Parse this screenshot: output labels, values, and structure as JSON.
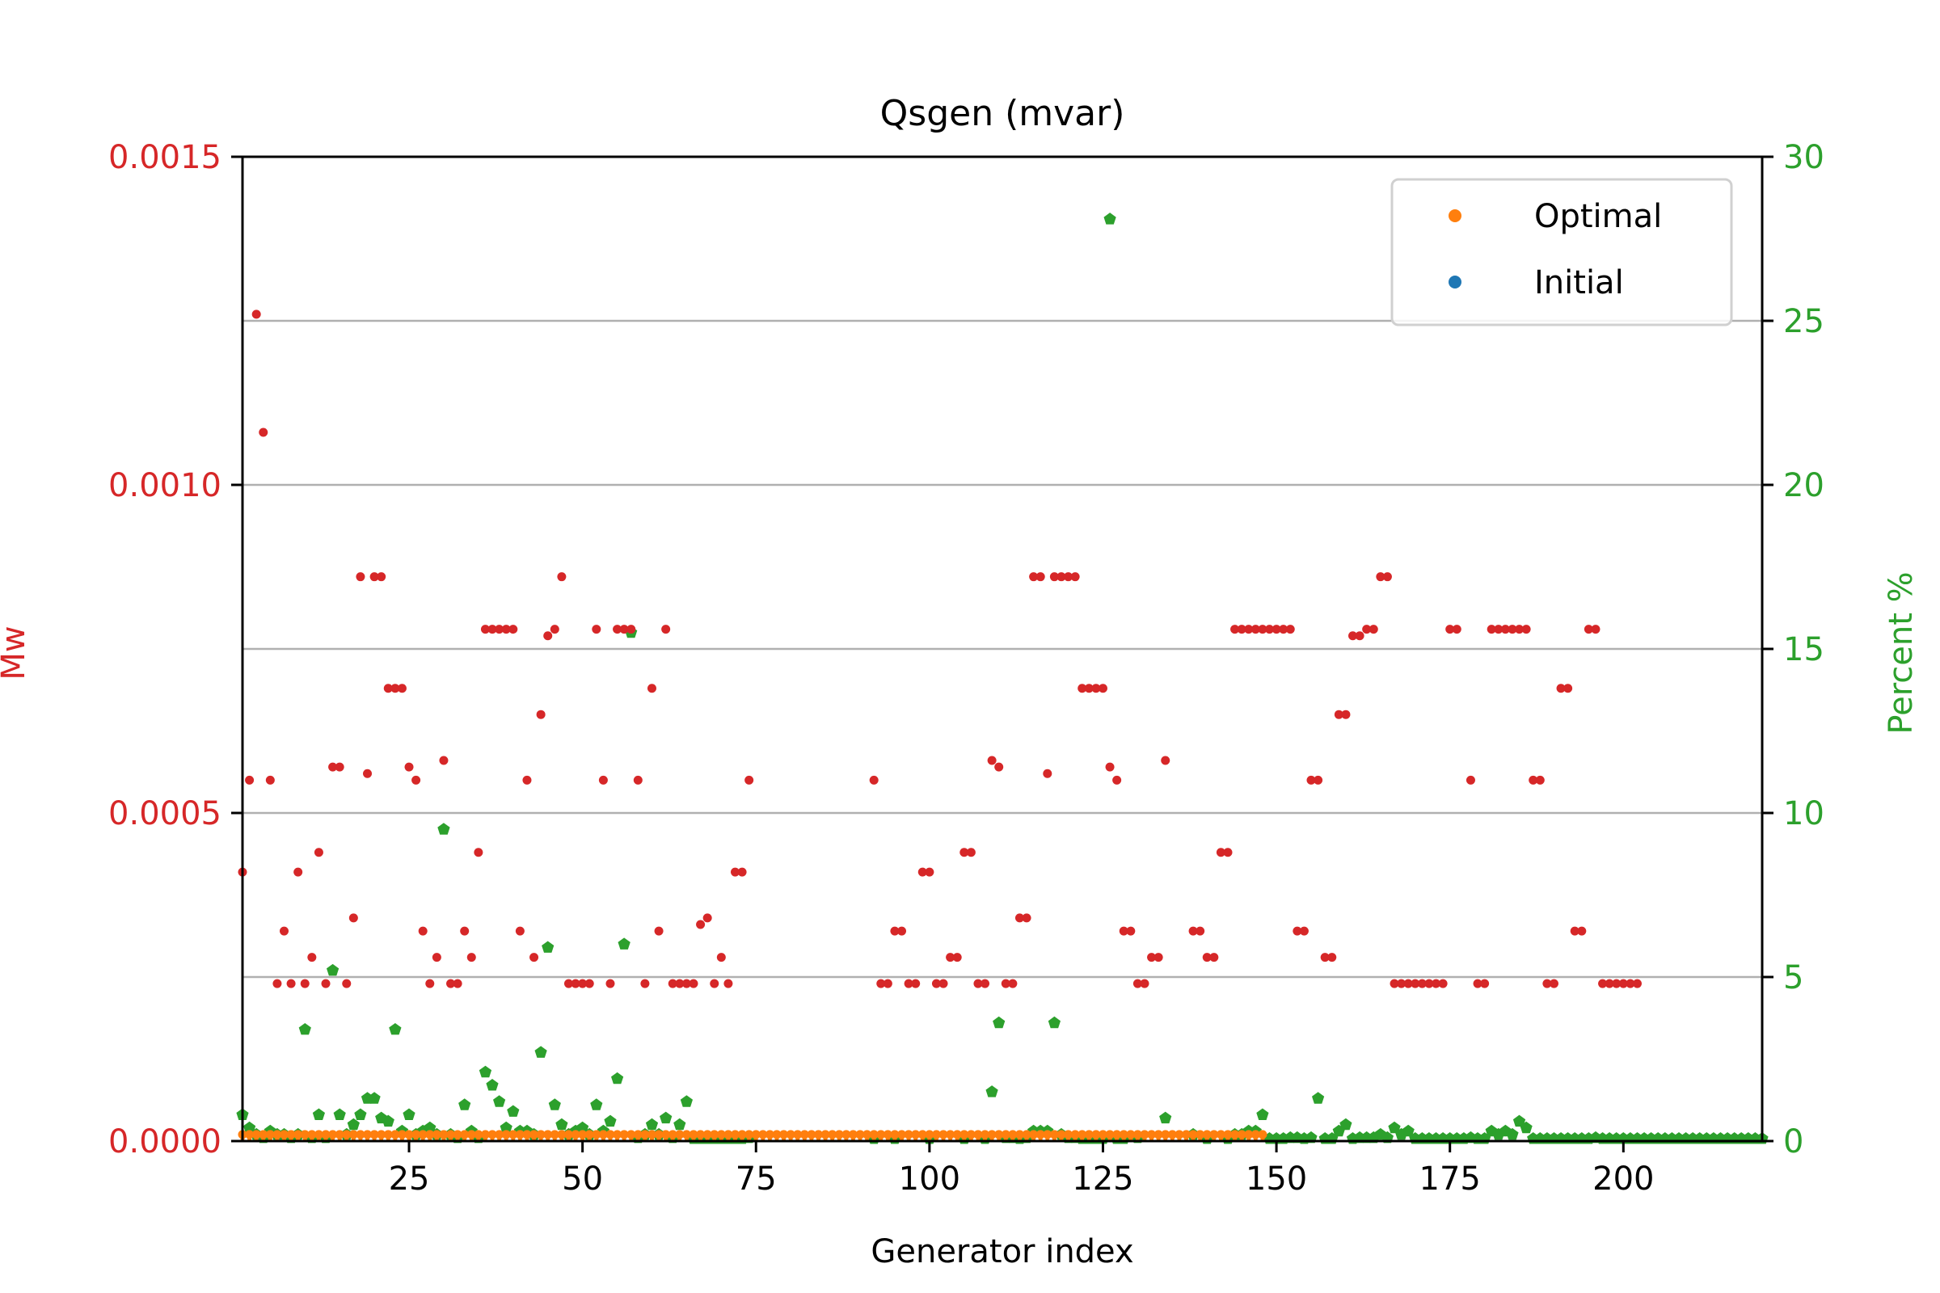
{
  "chart_data": {
    "type": "scatter",
    "title": "Qsgen (mvar)",
    "xlabel": "Generator index",
    "ylabel_left": "Mw",
    "ylabel_right": "Percent %",
    "xlim": [
      1,
      220
    ],
    "ylim_left": [
      0,
      0.0015
    ],
    "ylim_right": [
      0,
      30
    ],
    "x_ticks": [
      25,
      50,
      75,
      100,
      125,
      150,
      175,
      200
    ],
    "y_left_ticks": [
      "0.0000",
      "0.0005",
      "0.0010",
      "0.0015"
    ],
    "y_right_ticks": [
      "0",
      "5",
      "10",
      "15",
      "20",
      "25",
      "30"
    ],
    "y_right_tick_values": [
      0,
      5,
      10,
      15,
      20,
      25,
      30
    ],
    "y_left_tick_values": [
      0,
      0.0005,
      0.001,
      0.0015
    ],
    "grid": "horizontal",
    "legend_placement": "top-right",
    "colors": {
      "optimal": "#ff7f0e",
      "initial": "#1f77b4",
      "diff": "#d62728",
      "percent": "#2ca02c",
      "left_axis": "#d62728",
      "right_axis": "#2ca02c",
      "grid": "#b0b0b0"
    },
    "legend": [
      {
        "label": "Optimal",
        "color": "#ff7f0e"
      },
      {
        "label": "Initial",
        "color": "#1f77b4"
      }
    ],
    "optimal": {
      "x_start": 1,
      "x_end": 148,
      "value": 1e-05
    },
    "initial": {
      "x_start": 1,
      "x_end": 148,
      "value": 3e-06
    },
    "diff_series": [
      [
        1,
        0.00041
      ],
      [
        2,
        0.00055
      ],
      [
        3,
        0.00126
      ],
      [
        4,
        0.00108
      ],
      [
        5,
        0.00055
      ],
      [
        6,
        0.00024
      ],
      [
        7,
        0.00032
      ],
      [
        8,
        0.00024
      ],
      [
        9,
        0.00041
      ],
      [
        10,
        0.00024
      ],
      [
        11,
        0.00028
      ],
      [
        12,
        0.00044
      ],
      [
        13,
        0.00024
      ],
      [
        14,
        0.00057
      ],
      [
        15,
        0.00057
      ],
      [
        16,
        0.00024
      ],
      [
        17,
        0.00034
      ],
      [
        18,
        0.00086
      ],
      [
        19,
        0.00056
      ],
      [
        20,
        0.00086
      ],
      [
        21,
        0.00086
      ],
      [
        22,
        0.00069
      ],
      [
        23,
        0.00069
      ],
      [
        24,
        0.00069
      ],
      [
        25,
        0.00057
      ],
      [
        26,
        0.00055
      ],
      [
        27,
        0.00032
      ],
      [
        28,
        0.00024
      ],
      [
        29,
        0.00028
      ],
      [
        30,
        0.00058
      ],
      [
        31,
        0.00024
      ],
      [
        32,
        0.00024
      ],
      [
        33,
        0.00032
      ],
      [
        34,
        0.00028
      ],
      [
        35,
        0.00044
      ],
      [
        36,
        0.00078
      ],
      [
        37,
        0.00078
      ],
      [
        38,
        0.00078
      ],
      [
        39,
        0.00078
      ],
      [
        40,
        0.00078
      ],
      [
        41,
        0.00032
      ],
      [
        42,
        0.00055
      ],
      [
        43,
        0.00028
      ],
      [
        44,
        0.00065
      ],
      [
        45,
        0.00077
      ],
      [
        46,
        0.00078
      ],
      [
        47,
        0.00086
      ],
      [
        48,
        0.00024
      ],
      [
        49,
        0.00024
      ],
      [
        50,
        0.00024
      ],
      [
        51,
        0.00024
      ],
      [
        52,
        0.00078
      ],
      [
        53,
        0.00055
      ],
      [
        54,
        0.00024
      ],
      [
        55,
        0.00078
      ],
      [
        56,
        0.00078
      ],
      [
        57,
        0.00078
      ],
      [
        58,
        0.00055
      ],
      [
        59,
        0.00024
      ],
      [
        60,
        0.00069
      ],
      [
        61,
        0.00032
      ],
      [
        62,
        0.00078
      ],
      [
        63,
        0.00024
      ],
      [
        64,
        0.00024
      ],
      [
        65,
        0.00024
      ],
      [
        66,
        0.00024
      ],
      [
        67,
        0.00033
      ],
      [
        68,
        0.00034
      ],
      [
        69,
        0.00024
      ],
      [
        70,
        0.00028
      ],
      [
        71,
        0.00024
      ],
      [
        72,
        0.00041
      ],
      [
        73,
        0.00041
      ],
      [
        74,
        0.00055
      ],
      [
        92,
        0.00055
      ],
      [
        93,
        0.00024
      ],
      [
        94,
        0.00024
      ],
      [
        95,
        0.00032
      ],
      [
        96,
        0.00032
      ],
      [
        97,
        0.00024
      ],
      [
        98,
        0.00024
      ],
      [
        99,
        0.00041
      ],
      [
        100,
        0.00041
      ],
      [
        101,
        0.00024
      ],
      [
        102,
        0.00024
      ],
      [
        103,
        0.00028
      ],
      [
        104,
        0.00028
      ],
      [
        105,
        0.00044
      ],
      [
        106,
        0.00044
      ],
      [
        107,
        0.00024
      ],
      [
        108,
        0.00024
      ],
      [
        109,
        0.00058
      ],
      [
        110,
        0.00057
      ],
      [
        111,
        0.00024
      ],
      [
        112,
        0.00024
      ],
      [
        113,
        0.00034
      ],
      [
        114,
        0.00034
      ],
      [
        115,
        0.00086
      ],
      [
        116,
        0.00086
      ],
      [
        117,
        0.00056
      ],
      [
        118,
        0.00086
      ],
      [
        119,
        0.00086
      ],
      [
        120,
        0.00086
      ],
      [
        121,
        0.00086
      ],
      [
        122,
        0.00069
      ],
      [
        123,
        0.00069
      ],
      [
        124,
        0.00069
      ],
      [
        125,
        0.00069
      ],
      [
        126,
        0.00057
      ],
      [
        127,
        0.00055
      ],
      [
        128,
        0.00032
      ],
      [
        129,
        0.00032
      ],
      [
        130,
        0.00024
      ],
      [
        131,
        0.00024
      ],
      [
        132,
        0.00028
      ],
      [
        133,
        0.00028
      ],
      [
        134,
        0.00058
      ],
      [
        138,
        0.00032
      ],
      [
        139,
        0.00032
      ],
      [
        140,
        0.00028
      ],
      [
        141,
        0.00028
      ],
      [
        142,
        0.00044
      ],
      [
        143,
        0.00044
      ],
      [
        144,
        0.00078
      ],
      [
        145,
        0.00078
      ],
      [
        146,
        0.00078
      ],
      [
        147,
        0.00078
      ],
      [
        148,
        0.00078
      ],
      [
        149,
        0.00078
      ],
      [
        150,
        0.00078
      ],
      [
        151,
        0.00078
      ],
      [
        152,
        0.00078
      ],
      [
        153,
        0.00032
      ],
      [
        154,
        0.00032
      ],
      [
        155,
        0.00055
      ],
      [
        156,
        0.00055
      ],
      [
        157,
        0.00028
      ],
      [
        158,
        0.00028
      ],
      [
        159,
        0.00065
      ],
      [
        160,
        0.00065
      ],
      [
        161,
        0.00077
      ],
      [
        162,
        0.00077
      ],
      [
        163,
        0.00078
      ],
      [
        164,
        0.00078
      ],
      [
        165,
        0.00086
      ],
      [
        166,
        0.00086
      ],
      [
        167,
        0.00024
      ],
      [
        168,
        0.00024
      ],
      [
        169,
        0.00024
      ],
      [
        170,
        0.00024
      ],
      [
        171,
        0.00024
      ],
      [
        172,
        0.00024
      ],
      [
        173,
        0.00024
      ],
      [
        174,
        0.00024
      ],
      [
        175,
        0.00078
      ],
      [
        176,
        0.00078
      ],
      [
        178,
        0.00055
      ],
      [
        179,
        0.00024
      ],
      [
        180,
        0.00024
      ],
      [
        181,
        0.00078
      ],
      [
        182,
        0.00078
      ],
      [
        183,
        0.00078
      ],
      [
        184,
        0.00078
      ],
      [
        185,
        0.00078
      ],
      [
        186,
        0.00078
      ],
      [
        187,
        0.00055
      ],
      [
        188,
        0.00055
      ],
      [
        189,
        0.00024
      ],
      [
        190,
        0.00024
      ],
      [
        191,
        0.00069
      ],
      [
        192,
        0.00069
      ],
      [
        193,
        0.00032
      ],
      [
        194,
        0.00032
      ],
      [
        195,
        0.00078
      ],
      [
        196,
        0.00078
      ],
      [
        197,
        0.00024
      ],
      [
        198,
        0.00024
      ],
      [
        199,
        0.00024
      ],
      [
        200,
        0.00024
      ],
      [
        201,
        0.00024
      ],
      [
        202,
        0.00024
      ]
    ],
    "percent_series": [
      [
        1,
        0.8
      ],
      [
        2,
        0.4
      ],
      [
        3,
        0.2
      ],
      [
        4,
        0.1
      ],
      [
        5,
        0.3
      ],
      [
        6,
        0.2
      ],
      [
        7,
        0.2
      ],
      [
        8,
        0.1
      ],
      [
        9,
        0.2
      ],
      [
        10,
        3.4
      ],
      [
        11,
        0.1
      ],
      [
        12,
        0.8
      ],
      [
        13,
        0.1
      ],
      [
        14,
        5.2
      ],
      [
        15,
        0.8
      ],
      [
        16,
        0.2
      ],
      [
        17,
        0.5
      ],
      [
        18,
        0.8
      ],
      [
        19,
        1.3
      ],
      [
        20,
        1.3
      ],
      [
        21,
        0.7
      ],
      [
        22,
        0.6
      ],
      [
        23,
        3.4
      ],
      [
        24,
        0.3
      ],
      [
        25,
        0.8
      ],
      [
        26,
        0.2
      ],
      [
        27,
        0.3
      ],
      [
        28,
        0.4
      ],
      [
        29,
        0.2
      ],
      [
        30,
        9.5
      ],
      [
        31,
        0.2
      ],
      [
        32,
        0.1
      ],
      [
        33,
        1.1
      ],
      [
        34,
        0.3
      ],
      [
        35,
        0.1
      ],
      [
        36,
        2.1
      ],
      [
        37,
        1.7
      ],
      [
        38,
        1.2
      ],
      [
        39,
        0.4
      ],
      [
        40,
        0.9
      ],
      [
        41,
        0.3
      ],
      [
        42,
        0.3
      ],
      [
        43,
        0.2
      ],
      [
        44,
        2.7
      ],
      [
        45,
        5.9
      ],
      [
        46,
        1.1
      ],
      [
        47,
        0.5
      ],
      [
        48,
        0.2
      ],
      [
        49,
        0.3
      ],
      [
        50,
        0.4
      ],
      [
        51,
        0.2
      ],
      [
        52,
        1.1
      ],
      [
        53,
        0.3
      ],
      [
        54,
        0.6
      ],
      [
        55,
        1.9
      ],
      [
        56,
        6.0
      ],
      [
        57,
        15.5
      ],
      [
        58,
        0.1
      ],
      [
        59,
        0.2
      ],
      [
        60,
        0.5
      ],
      [
        61,
        0.2
      ],
      [
        62,
        0.7
      ],
      [
        63,
        0.1
      ],
      [
        64,
        0.5
      ],
      [
        65,
        1.2
      ],
      [
        66,
        0.05
      ],
      [
        67,
        0.05
      ],
      [
        68,
        0.05
      ],
      [
        69,
        0.05
      ],
      [
        70,
        0.05
      ],
      [
        71,
        0.05
      ],
      [
        72,
        0.05
      ],
      [
        73,
        0.05
      ],
      [
        74,
        0.1
      ],
      [
        92,
        0.05
      ],
      [
        95,
        0.05
      ],
      [
        100,
        0.05
      ],
      [
        105,
        0.05
      ],
      [
        108,
        0.05
      ],
      [
        109,
        1.5
      ],
      [
        110,
        3.6
      ],
      [
        111,
        0.1
      ],
      [
        112,
        0.1
      ],
      [
        113,
        0.05
      ],
      [
        114,
        0.1
      ],
      [
        115,
        0.3
      ],
      [
        116,
        0.3
      ],
      [
        117,
        0.3
      ],
      [
        118,
        3.6
      ],
      [
        119,
        0.2
      ],
      [
        120,
        0.1
      ],
      [
        121,
        0.1
      ],
      [
        122,
        0.05
      ],
      [
        123,
        0.05
      ],
      [
        124,
        0.05
      ],
      [
        125,
        0.05
      ],
      [
        126,
        28.1
      ],
      [
        127,
        0.05
      ],
      [
        128,
        0.05
      ],
      [
        130,
        0.1
      ],
      [
        134,
        0.7
      ],
      [
        138,
        0.2
      ],
      [
        140,
        0.05
      ],
      [
        143,
        0.05
      ],
      [
        144,
        0.2
      ],
      [
        145,
        0.2
      ],
      [
        146,
        0.3
      ],
      [
        147,
        0.3
      ],
      [
        148,
        0.8
      ],
      [
        149,
        0.05
      ],
      [
        150,
        0.05
      ],
      [
        151,
        0.05
      ],
      [
        152,
        0.1
      ],
      [
        153,
        0.1
      ],
      [
        154,
        0.05
      ],
      [
        155,
        0.1
      ],
      [
        156,
        1.3
      ],
      [
        157,
        0.05
      ],
      [
        158,
        0.05
      ],
      [
        159,
        0.3
      ],
      [
        160,
        0.5
      ],
      [
        161,
        0.05
      ],
      [
        162,
        0.1
      ],
      [
        163,
        0.1
      ],
      [
        164,
        0.1
      ],
      [
        165,
        0.2
      ],
      [
        166,
        0.1
      ],
      [
        167,
        0.4
      ],
      [
        168,
        0.2
      ],
      [
        169,
        0.3
      ],
      [
        170,
        0.05
      ],
      [
        171,
        0.05
      ],
      [
        172,
        0.05
      ],
      [
        173,
        0.05
      ],
      [
        174,
        0.05
      ],
      [
        175,
        0.05
      ],
      [
        176,
        0.05
      ],
      [
        177,
        0.05
      ],
      [
        178,
        0.1
      ],
      [
        179,
        0.05
      ],
      [
        180,
        0.05
      ],
      [
        181,
        0.3
      ],
      [
        182,
        0.2
      ],
      [
        183,
        0.3
      ],
      [
        184,
        0.2
      ],
      [
        185,
        0.6
      ],
      [
        186,
        0.4
      ],
      [
        187,
        0.05
      ],
      [
        188,
        0.05
      ],
      [
        189,
        0.05
      ],
      [
        190,
        0.05
      ],
      [
        191,
        0.05
      ],
      [
        192,
        0.05
      ],
      [
        193,
        0.05
      ],
      [
        194,
        0.05
      ],
      [
        195,
        0.05
      ],
      [
        196,
        0.1
      ],
      [
        197,
        0.05
      ],
      [
        198,
        0.05
      ],
      [
        199,
        0.05
      ],
      [
        200,
        0.05
      ],
      [
        201,
        0.05
      ],
      [
        202,
        0.05
      ],
      [
        203,
        0.05
      ],
      [
        204,
        0.05
      ],
      [
        205,
        0.05
      ],
      [
        206,
        0.05
      ],
      [
        207,
        0.05
      ],
      [
        208,
        0.05
      ],
      [
        209,
        0.05
      ],
      [
        210,
        0.05
      ],
      [
        211,
        0.05
      ],
      [
        212,
        0.05
      ],
      [
        213,
        0.05
      ],
      [
        214,
        0.05
      ],
      [
        215,
        0.05
      ],
      [
        216,
        0.05
      ],
      [
        217,
        0.05
      ],
      [
        218,
        0.05
      ],
      [
        219,
        0.05
      ],
      [
        220,
        0.05
      ]
    ]
  }
}
